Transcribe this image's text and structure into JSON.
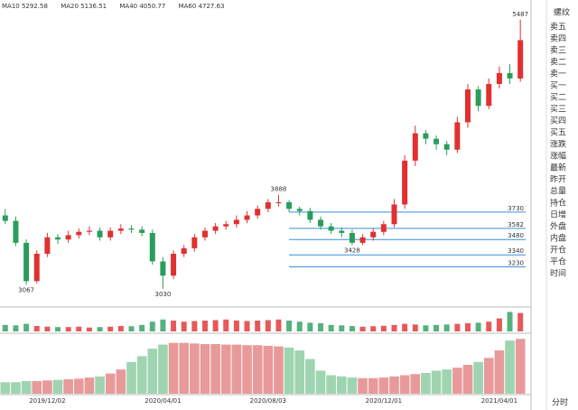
{
  "chart_data": {
    "type": "candlestick",
    "legend_texts": [
      "MA10 5292.58",
      "MA20 5136.51",
      "MA40 4050.77",
      "MA60 4727.63"
    ],
    "legend_colors": [
      "#444444",
      "#e040c0",
      "#2e8b57",
      "#888888"
    ],
    "categories": [
      null,
      null,
      null,
      null,
      "2019/12/02",
      null,
      null,
      null,
      null,
      null,
      null,
      null,
      null,
      null,
      null,
      "2020/04/01",
      null,
      null,
      null,
      null,
      null,
      null,
      null,
      null,
      null,
      "2020/08/03",
      null,
      null,
      null,
      null,
      null,
      null,
      null,
      null,
      null,
      null,
      "2020/12/01",
      null,
      null,
      null,
      null,
      null,
      null,
      null,
      null,
      null,
      null,
      "2021/04/01",
      null,
      null
    ],
    "open": [
      3700,
      3650,
      3450,
      3100,
      3350,
      3500,
      3480,
      3520,
      3550,
      3560,
      3500,
      3560,
      3580,
      3570,
      3540,
      3280,
      3150,
      3350,
      3400,
      3500,
      3560,
      3600,
      3620,
      3660,
      3700,
      3760,
      3820,
      3820,
      3760,
      3740,
      3660,
      3600,
      3560,
      3540,
      3450,
      3500,
      3550,
      3620,
      3800,
      4200,
      4450,
      4400,
      4350,
      4300,
      4550,
      4850,
      4700,
      4900,
      5000,
      4950
    ],
    "high": [
      3760,
      3690,
      3480,
      3380,
      3540,
      3530,
      3560,
      3580,
      3600,
      3590,
      3590,
      3620,
      3610,
      3600,
      3570,
      3320,
      3380,
      3430,
      3530,
      3590,
      3630,
      3650,
      3700,
      3740,
      3790,
      3850,
      3888,
      3840,
      3780,
      3770,
      3690,
      3630,
      3590,
      3570,
      3530,
      3580,
      3650,
      3850,
      4250,
      4520,
      4480,
      4430,
      4380,
      4600,
      4900,
      4880,
      4950,
      5060,
      5080,
      5487
    ],
    "low": [
      3620,
      3420,
      3067,
      3080,
      3320,
      3440,
      3450,
      3490,
      3520,
      3470,
      3470,
      3530,
      3540,
      3510,
      3250,
      3030,
      3120,
      3320,
      3370,
      3470,
      3530,
      3570,
      3590,
      3630,
      3670,
      3730,
      3780,
      3730,
      3700,
      3630,
      3570,
      3530,
      3500,
      3428,
      3430,
      3470,
      3520,
      3590,
      3760,
      4150,
      4350,
      4300,
      4250,
      4270,
      4500,
      4650,
      4670,
      4860,
      4900,
      4920
    ],
    "close": [
      3650,
      3450,
      3100,
      3350,
      3500,
      3480,
      3520,
      3550,
      3560,
      3500,
      3560,
      3580,
      3570,
      3540,
      3280,
      3150,
      3350,
      3400,
      3500,
      3560,
      3600,
      3620,
      3660,
      3700,
      3760,
      3820,
      3820,
      3760,
      3740,
      3660,
      3600,
      3560,
      3540,
      3450,
      3500,
      3550,
      3620,
      3800,
      4200,
      4450,
      4400,
      4350,
      4300,
      4550,
      4850,
      4700,
      4900,
      5000,
      4950,
      5300
    ],
    "up_color": "#e03030",
    "down_color": "#2a9d5c",
    "ylim": [
      2880,
      5650
    ],
    "annotations": [
      3067,
      3030,
      3888,
      3428,
      5487
    ],
    "levels": [
      3730,
      3582,
      3480,
      3340,
      3230
    ],
    "level_color": "#3a8fd8",
    "volume": [
      30,
      28,
      35,
      25,
      22,
      20,
      20,
      22,
      18,
      20,
      22,
      25,
      24,
      30,
      45,
      55,
      50,
      45,
      48,
      50,
      52,
      55,
      50,
      48,
      50,
      52,
      55,
      50,
      45,
      40,
      38,
      30,
      28,
      25,
      22,
      24,
      26,
      30,
      35,
      32,
      28,
      30,
      32,
      35,
      38,
      40,
      45,
      60,
      90,
      85
    ],
    "volume_ylim": [
      0,
      100
    ],
    "open_interest": [
      20,
      20,
      22,
      22,
      23,
      24,
      25,
      26,
      28,
      30,
      35,
      42,
      55,
      65,
      78,
      85,
      88,
      88,
      87,
      86,
      86,
      85,
      85,
      84,
      84,
      83,
      82,
      80,
      75,
      60,
      40,
      32,
      30,
      28,
      27,
      27,
      28,
      30,
      32,
      34,
      36,
      40,
      42,
      45,
      50,
      55,
      62,
      75,
      92,
      95
    ],
    "oi_ylim": [
      0,
      100
    ],
    "side_title": "螺纹",
    "side_labels": [
      "卖五",
      "卖四",
      "卖三",
      "卖二",
      "卖一",
      "买一",
      "买二",
      "买三",
      "买四",
      "买五",
      "涨跌",
      "涨幅",
      "最新",
      "昨开",
      "总量",
      "持仓",
      "日增",
      "外盘",
      "内盘",
      "开仓",
      "平仓",
      "时间"
    ],
    "footer": "分时"
  }
}
